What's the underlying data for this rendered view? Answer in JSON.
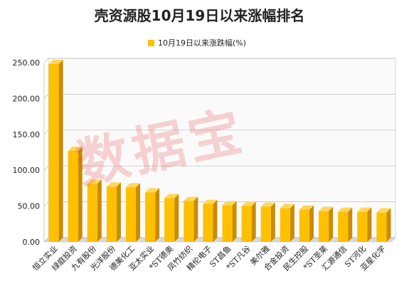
{
  "chart_data": {
    "type": "bar",
    "title": "壳资源股10月19日以来涨幅排名",
    "legend": {
      "label": "10月19日以来涨跌幅(%)",
      "position": "top"
    },
    "categories": [
      "恒立实业",
      "绿庭投资",
      "九有股份",
      "光洋股份",
      "德美化工",
      "亚太实业",
      "*ST德奥",
      "凤竹纺织",
      "精伦电子",
      "ST昌鱼",
      "*ST凡谷",
      "美尔雅",
      "合金投资",
      "民生控股",
      "*ST圣莱",
      "汇源通信",
      "ST河化",
      "亚星化学"
    ],
    "series": [
      {
        "values": [
          248,
          127,
          81,
          77,
          76,
          69,
          61,
          57,
          53,
          51,
          50,
          49,
          47,
          45,
          43,
          42,
          42,
          41
        ]
      }
    ],
    "ylim": [
      0,
      250
    ],
    "yticks": [
      "0.00",
      "50.00",
      "100.00",
      "150.00",
      "200.00",
      "250.00"
    ],
    "grid": true,
    "bar_color": "#ffc000",
    "watermark": "数据宝"
  }
}
